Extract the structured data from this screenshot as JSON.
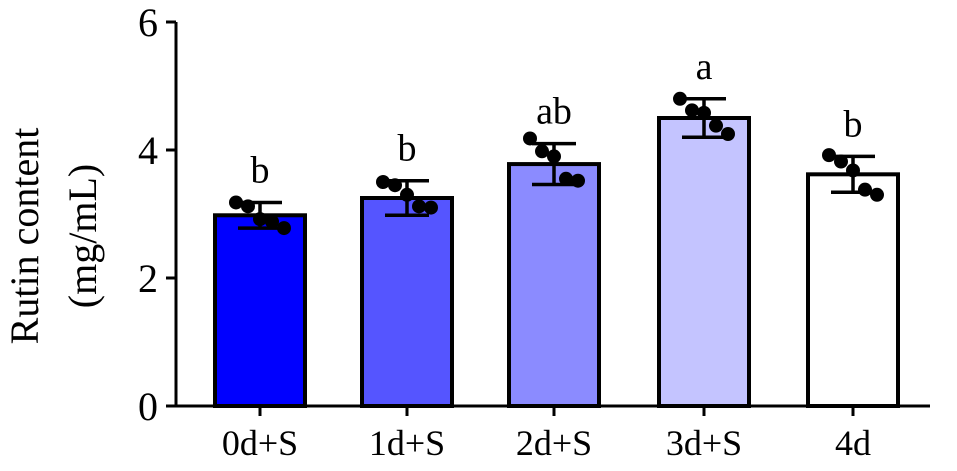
{
  "chart_data": {
    "type": "bar",
    "ylabel_line1": "Rutin content",
    "ylabel_line2": "(mg/mL)",
    "xlabel": "",
    "ylim": [
      0,
      6
    ],
    "yticks": [
      0,
      2,
      4,
      6
    ],
    "categories": [
      "0d+S",
      "1d+S",
      "2d+S",
      "3d+S",
      "4d"
    ],
    "values": [
      2.98,
      3.25,
      3.78,
      4.5,
      3.62
    ],
    "errors": [
      0.2,
      0.27,
      0.32,
      0.3,
      0.28
    ],
    "significance": [
      "b",
      "b",
      "ab",
      "a",
      "b"
    ],
    "colors": [
      "#0000ff",
      "#5555ff",
      "#8b8bff",
      "#c4c4ff",
      "#ffffff"
    ],
    "points": [
      [
        3.18,
        3.12,
        2.92,
        2.88,
        2.78
      ],
      [
        3.5,
        3.45,
        3.3,
        3.12,
        3.1
      ],
      [
        4.18,
        3.98,
        3.9,
        3.55,
        3.52
      ],
      [
        4.8,
        4.62,
        4.58,
        4.38,
        4.25
      ],
      [
        3.92,
        3.82,
        3.68,
        3.38,
        3.3
      ]
    ]
  }
}
